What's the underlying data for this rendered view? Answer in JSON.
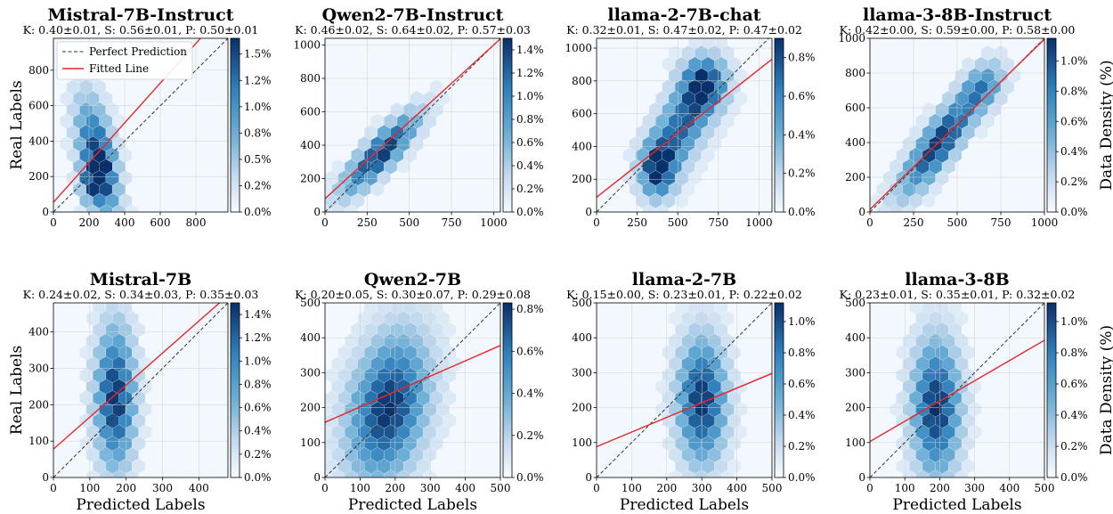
{
  "figure": {
    "xlabel": "Predicted Labels",
    "ylabel": "Real Labels",
    "colorbar_label": "Data Density (%)"
  },
  "legend": {
    "perfect": "Perfect Prediction",
    "fitted": "Fitted Line"
  },
  "colors": {
    "fitted": "#e8262b",
    "perfect": "#333333",
    "cmap_low": "#f7fbff",
    "cmap_high": "#08306b"
  },
  "chart_data": [
    {
      "type": "hexbin",
      "title": "Mistral-7B-Instruct",
      "subtitle": "K: 0.40±0.01, S: 0.56±0.01, P: 0.50±0.01",
      "xlim": [
        0,
        980
      ],
      "ylim": [
        0,
        980
      ],
      "xticks": [
        0,
        200,
        400,
        600,
        800
      ],
      "yticks": [
        0,
        200,
        400,
        600,
        800
      ],
      "cbar_max": 1.65,
      "cbar_ticks": [
        "0.0%",
        "0.2%",
        "0.5%",
        "0.8%",
        "1.0%",
        "1.2%",
        "1.5%"
      ],
      "cbar_vals": [
        0,
        0.25,
        0.5,
        0.75,
        1.0,
        1.25,
        1.5
      ],
      "fitted": {
        "slope": 1.12,
        "intercept": 55
      },
      "clusters": [
        {
          "x": 250,
          "y": 300,
          "sx": 75,
          "sy": 220,
          "r": -0.5,
          "w": 1.0
        },
        {
          "x": 230,
          "y": 180,
          "sx": 50,
          "sy": 80,
          "r": 0.2,
          "w": 0.6
        }
      ]
    },
    {
      "type": "hexbin",
      "title": "Qwen2-7B-Instruct",
      "subtitle": "K: 0.46±0.02, S: 0.64±0.02, P: 0.57±0.03",
      "xlim": [
        0,
        1040
      ],
      "ylim": [
        0,
        1040
      ],
      "xticks": [
        0,
        250,
        500,
        750,
        1000
      ],
      "yticks": [
        0,
        200,
        400,
        600,
        800,
        1000
      ],
      "cbar_max": 1.5,
      "cbar_ticks": [
        "0.0%",
        "0.2%",
        "0.4%",
        "0.6%",
        "0.8%",
        "1.0%",
        "1.2%",
        "1.4%"
      ],
      "cbar_vals": [
        0,
        0.2,
        0.4,
        0.6,
        0.8,
        1.0,
        1.2,
        1.4
      ],
      "fitted": {
        "slope": 0.92,
        "intercept": 80
      },
      "clusters": [
        {
          "x": 330,
          "y": 350,
          "sx": 150,
          "sy": 160,
          "r": 0.85,
          "w": 1.0
        }
      ]
    },
    {
      "type": "hexbin",
      "title": "llama-2-7B-chat",
      "subtitle": "K: 0.32±0.01, S: 0.47±0.02, P: 0.47±0.02",
      "xlim": [
        0,
        1080
      ],
      "ylim": [
        0,
        1060
      ],
      "xticks": [
        0,
        250,
        500,
        750,
        1000
      ],
      "yticks": [
        0,
        200,
        400,
        600,
        800,
        1000
      ],
      "cbar_max": 0.9,
      "cbar_ticks": [
        "0.0%",
        "0.2%",
        "0.4%",
        "0.6%",
        "0.8%"
      ],
      "cbar_vals": [
        0,
        0.2,
        0.4,
        0.6,
        0.8
      ],
      "fitted": {
        "slope": 0.78,
        "intercept": 90
      },
      "clusters": [
        {
          "x": 380,
          "y": 260,
          "sx": 70,
          "sy": 110,
          "r": 0,
          "w": 0.9
        },
        {
          "x": 520,
          "y": 520,
          "sx": 130,
          "sy": 200,
          "r": 0.6,
          "w": 0.8
        },
        {
          "x": 660,
          "y": 780,
          "sx": 90,
          "sy": 110,
          "r": 0,
          "w": 0.9
        }
      ]
    },
    {
      "type": "hexbin",
      "title": "llama-3-8B-Instruct",
      "subtitle": "K: 0.42±0.00, S: 0.59±0.00, P: 0.58±0.00",
      "xlim": [
        0,
        1000
      ],
      "ylim": [
        0,
        1000
      ],
      "xticks": [
        0,
        250,
        500,
        750,
        1000
      ],
      "yticks": [
        0,
        200,
        400,
        600,
        800,
        1000
      ],
      "cbar_max": 1.15,
      "cbar_ticks": [
        "0.0%",
        "0.2%",
        "0.4%",
        "0.6%",
        "0.8%",
        "1.0%"
      ],
      "cbar_vals": [
        0,
        0.2,
        0.4,
        0.6,
        0.8,
        1.0
      ],
      "fitted": {
        "slope": 0.98,
        "intercept": 15
      },
      "clusters": [
        {
          "x": 400,
          "y": 400,
          "sx": 150,
          "sy": 200,
          "r": 0.85,
          "w": 1.0
        },
        {
          "x": 650,
          "y": 720,
          "sx": 80,
          "sy": 90,
          "r": 0.3,
          "w": 0.5
        }
      ]
    },
    {
      "type": "hexbin",
      "title": "Mistral-7B",
      "subtitle": "K: 0.24±0.02, S: 0.34±0.03, P: 0.35±0.03",
      "xlim": [
        0,
        480
      ],
      "ylim": [
        0,
        480
      ],
      "xticks": [
        0,
        100,
        200,
        300,
        400
      ],
      "yticks": [
        0,
        100,
        200,
        300,
        400
      ],
      "cbar_max": 1.5,
      "cbar_ticks": [
        "0.0%",
        "0.2%",
        "0.4%",
        "0.6%",
        "0.8%",
        "1.0%",
        "1.2%",
        "1.4%"
      ],
      "cbar_vals": [
        0,
        0.2,
        0.4,
        0.6,
        0.8,
        1.0,
        1.2,
        1.4
      ],
      "fitted": {
        "slope": 0.88,
        "intercept": 78
      },
      "clusters": [
        {
          "x": 170,
          "y": 220,
          "sx": 35,
          "sy": 130,
          "r": 0,
          "w": 1.0
        }
      ]
    },
    {
      "type": "hexbin",
      "title": "Qwen2-7B",
      "subtitle": "K: 0.20±0.05, S: 0.30±0.07, P: 0.29±0.08",
      "xlim": [
        0,
        500
      ],
      "ylim": [
        0,
        500
      ],
      "xticks": [
        0,
        100,
        200,
        300,
        400,
        500
      ],
      "yticks": [
        0,
        100,
        200,
        300,
        400,
        500
      ],
      "cbar_max": 0.83,
      "cbar_ticks": [
        "0.0%",
        "0.2%",
        "0.4%",
        "0.6%",
        "0.8%"
      ],
      "cbar_vals": [
        0,
        0.2,
        0.4,
        0.6,
        0.8
      ],
      "fitted": {
        "slope": 0.44,
        "intercept": 158
      },
      "clusters": [
        {
          "x": 180,
          "y": 200,
          "sx": 75,
          "sy": 140,
          "r": 0.3,
          "w": 1.0
        }
      ]
    },
    {
      "type": "hexbin",
      "title": "llama-2-7B",
      "subtitle": "K: 0.15±0.00, S: 0.23±0.01, P: 0.22±0.02",
      "xlim": [
        0,
        500
      ],
      "ylim": [
        0,
        500
      ],
      "xticks": [
        0,
        100,
        200,
        300,
        400,
        500
      ],
      "yticks": [
        0,
        100,
        200,
        300,
        400,
        500
      ],
      "cbar_max": 1.12,
      "cbar_ticks": [
        "0.0%",
        "0.2%",
        "0.4%",
        "0.6%",
        "0.8%",
        "1.0%"
      ],
      "cbar_vals": [
        0,
        0.2,
        0.4,
        0.6,
        0.8,
        1.0
      ],
      "fitted": {
        "slope": 0.42,
        "intercept": 88
      },
      "clusters": [
        {
          "x": 300,
          "y": 220,
          "sx": 45,
          "sy": 120,
          "r": 0,
          "w": 1.0
        }
      ]
    },
    {
      "type": "hexbin",
      "title": "llama-3-8B",
      "subtitle": "K: 0.23±0.01, S: 0.35±0.01, P: 0.32±0.02",
      "xlim": [
        0,
        500
      ],
      "ylim": [
        0,
        500
      ],
      "xticks": [
        0,
        100,
        200,
        300,
        400,
        500
      ],
      "yticks": [
        0,
        100,
        200,
        300,
        400,
        500
      ],
      "cbar_max": 1.12,
      "cbar_ticks": [
        "0.0%",
        "0.2%",
        "0.4%",
        "0.6%",
        "0.8%",
        "1.0%"
      ],
      "cbar_vals": [
        0,
        0.2,
        0.4,
        0.6,
        0.8,
        1.0
      ],
      "fitted": {
        "slope": 0.58,
        "intercept": 103
      },
      "clusters": [
        {
          "x": 190,
          "y": 200,
          "sx": 45,
          "sy": 130,
          "r": 0,
          "w": 1.0
        }
      ]
    }
  ]
}
